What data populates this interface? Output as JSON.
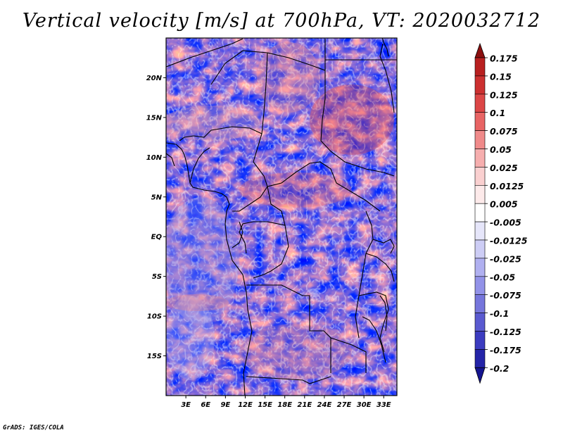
{
  "title": "Vertical velocity [m/s] at 700hPa, VT: 2020032712",
  "credit": "GrADS: IGES/COLA",
  "map": {
    "lon_range": [
      0,
      35
    ],
    "lat_range": [
      -20,
      25
    ],
    "lat_ticks": [
      {
        "value": 20,
        "label": "20N"
      },
      {
        "value": 15,
        "label": "15N"
      },
      {
        "value": 10,
        "label": "10N"
      },
      {
        "value": 5,
        "label": "5N"
      },
      {
        "value": 0,
        "label": "EQ"
      },
      {
        "value": -5,
        "label": "5S"
      },
      {
        "value": -10,
        "label": "10S"
      },
      {
        "value": -15,
        "label": "15S"
      }
    ],
    "lon_ticks": [
      {
        "value": 3,
        "label": "3E"
      },
      {
        "value": 6,
        "label": "6E"
      },
      {
        "value": 9,
        "label": "9E"
      },
      {
        "value": 12,
        "label": "12E"
      },
      {
        "value": 15,
        "label": "15E"
      },
      {
        "value": 18,
        "label": "18E"
      },
      {
        "value": 21,
        "label": "21E"
      },
      {
        "value": 24,
        "label": "24E"
      },
      {
        "value": 27,
        "label": "27E"
      },
      {
        "value": 30,
        "label": "30E"
      },
      {
        "value": 33,
        "label": "33E"
      }
    ]
  },
  "colorbar": {
    "levels": [
      {
        "label": "0.175",
        "color": "#a01616"
      },
      {
        "label": "0.15",
        "color": "#b82020"
      },
      {
        "label": "0.125",
        "color": "#cc3030"
      },
      {
        "label": "0.1",
        "color": "#dc4646"
      },
      {
        "label": "0.075",
        "color": "#e86464"
      },
      {
        "label": "0.05",
        "color": "#f08a8a"
      },
      {
        "label": "0.025",
        "color": "#f6aeae"
      },
      {
        "label": "0.0125",
        "color": "#fad0d0"
      },
      {
        "label": "0.005",
        "color": "#fdeaea"
      },
      {
        "label": "-0.005",
        "color": "#ffffff"
      },
      {
        "label": "-0.0125",
        "color": "#e6e6fa"
      },
      {
        "label": "-0.025",
        "color": "#cdcdf5"
      },
      {
        "label": "-0.05",
        "color": "#b0b0f0"
      },
      {
        "label": "-0.075",
        "color": "#9292e8"
      },
      {
        "label": "-0.1",
        "color": "#7676dc"
      },
      {
        "label": "-0.125",
        "color": "#5a5ad0"
      },
      {
        "label": "-0.175",
        "color": "#3c3cc0"
      },
      {
        "label": "-0.2",
        "color": "#2424a8"
      }
    ],
    "top_arrow_color": "#8c1010",
    "bottom_arrow_color": "#141490"
  }
}
